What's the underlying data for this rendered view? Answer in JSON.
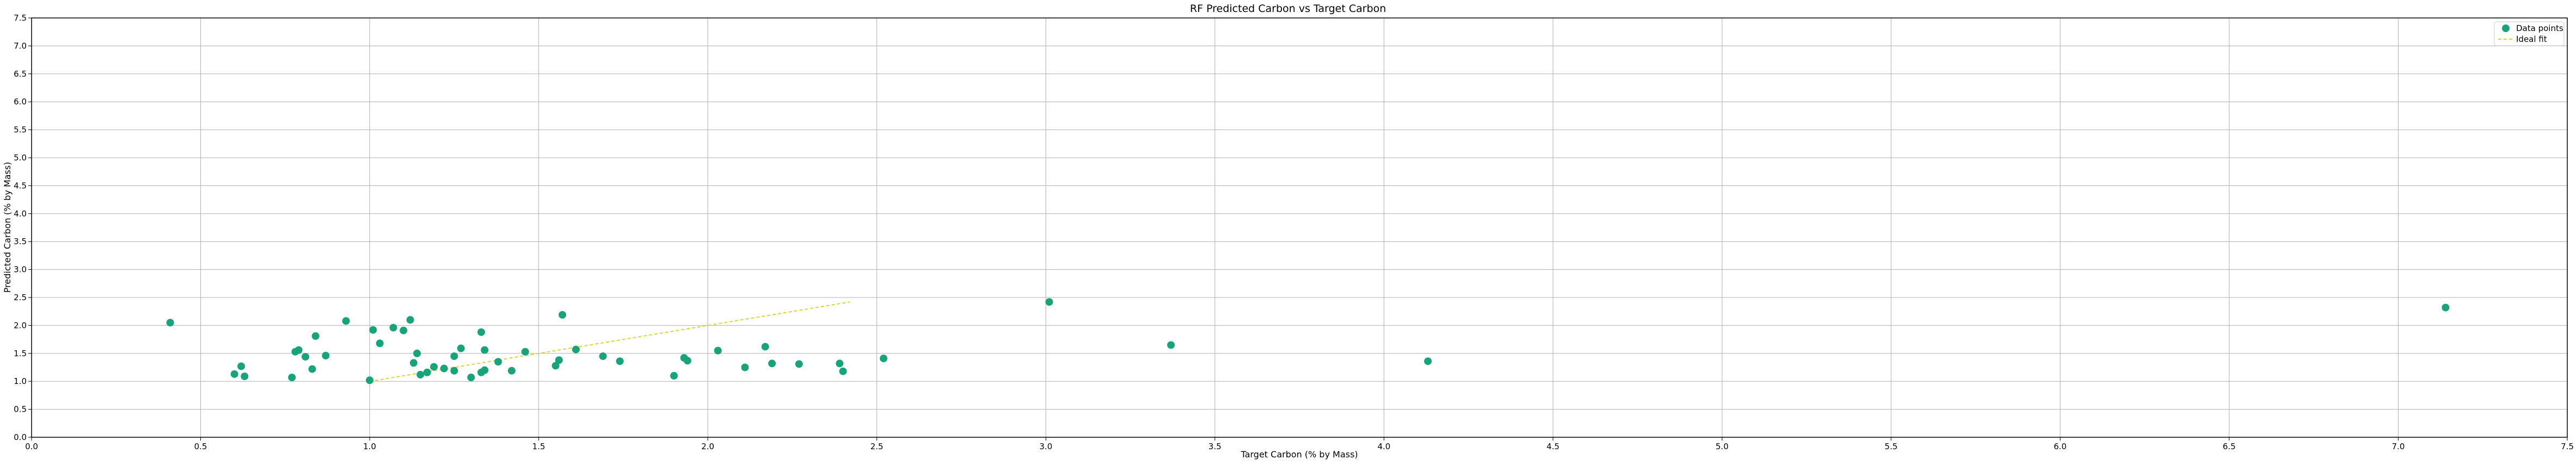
{
  "chart_data": {
    "type": "scatter",
    "title": "RF Predicted Carbon vs Target Carbon",
    "xlabel": "Target Carbon (% by Mass)",
    "ylabel": "Predicted Carbon (% by Mass)",
    "xlim": [
      0.0,
      7.5
    ],
    "ylim": [
      0.0,
      7.5
    ],
    "xticks": [
      "0.0",
      "0.5",
      "1.0",
      "1.5",
      "2.0",
      "2.5",
      "3.0",
      "3.5",
      "4.0",
      "4.5",
      "5.0",
      "5.5",
      "6.0",
      "6.5",
      "7.0",
      "7.5"
    ],
    "yticks": [
      "0.0",
      "0.5",
      "1.0",
      "1.5",
      "2.0",
      "2.5",
      "3.0",
      "3.5",
      "4.0",
      "4.5",
      "5.0",
      "5.5",
      "6.0",
      "6.5",
      "7.0",
      "7.5"
    ],
    "grid": true,
    "legend_position": "top-right",
    "series": [
      {
        "name": "Data points",
        "kind": "scatter",
        "color": "#1aa37a",
        "points": [
          [
            0.41,
            2.05
          ],
          [
            0.6,
            1.13
          ],
          [
            0.62,
            1.27
          ],
          [
            0.63,
            1.09
          ],
          [
            0.77,
            1.07
          ],
          [
            0.78,
            1.53
          ],
          [
            0.79,
            1.56
          ],
          [
            0.81,
            1.44
          ],
          [
            0.83,
            1.22
          ],
          [
            0.84,
            1.81
          ],
          [
            0.87,
            1.46
          ],
          [
            0.93,
            2.08
          ],
          [
            1.0,
            1.02
          ],
          [
            1.01,
            1.92
          ],
          [
            1.03,
            1.68
          ],
          [
            1.07,
            1.96
          ],
          [
            1.1,
            1.91
          ],
          [
            1.12,
            2.1
          ],
          [
            1.13,
            1.33
          ],
          [
            1.14,
            1.5
          ],
          [
            1.15,
            1.12
          ],
          [
            1.17,
            1.16
          ],
          [
            1.19,
            1.26
          ],
          [
            1.22,
            1.23
          ],
          [
            1.25,
            1.19
          ],
          [
            1.25,
            1.45
          ],
          [
            1.27,
            1.59
          ],
          [
            1.3,
            1.07
          ],
          [
            1.33,
            1.16
          ],
          [
            1.34,
            1.2
          ],
          [
            1.33,
            1.88
          ],
          [
            1.34,
            1.56
          ],
          [
            1.38,
            1.35
          ],
          [
            1.42,
            1.19
          ],
          [
            1.46,
            1.53
          ],
          [
            1.55,
            1.28
          ],
          [
            1.56,
            1.38
          ],
          [
            1.57,
            2.19
          ],
          [
            1.61,
            1.57
          ],
          [
            1.69,
            1.45
          ],
          [
            1.74,
            1.36
          ],
          [
            1.9,
            1.1
          ],
          [
            1.93,
            1.42
          ],
          [
            1.94,
            1.37
          ],
          [
            2.03,
            1.55
          ],
          [
            2.11,
            1.25
          ],
          [
            2.17,
            1.62
          ],
          [
            2.19,
            1.32
          ],
          [
            2.27,
            1.31
          ],
          [
            2.39,
            1.32
          ],
          [
            2.4,
            1.18
          ],
          [
            2.52,
            1.41
          ],
          [
            3.01,
            2.42
          ],
          [
            3.37,
            1.65
          ],
          [
            4.13,
            1.36
          ],
          [
            7.14,
            2.32
          ]
        ]
      },
      {
        "name": "Ideal fit",
        "kind": "line",
        "color": "#d4d63a",
        "points": [
          [
            1.0,
            1.0
          ],
          [
            2.42,
            2.42
          ]
        ]
      }
    ]
  }
}
